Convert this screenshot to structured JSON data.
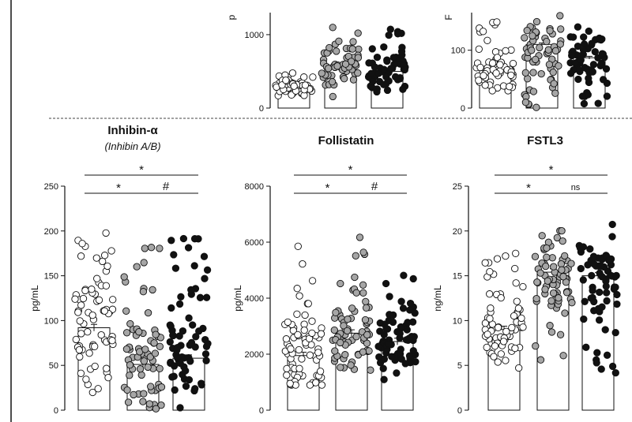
{
  "chart_data": [
    {
      "id": "top-mid",
      "type": "bar",
      "title": "",
      "ylabel": "p",
      "ylim": [
        0,
        1300
      ],
      "yticks": [
        0,
        1000
      ],
      "categories": [
        "",
        "",
        ""
      ],
      "series": [
        {
          "values": [
            280,
            570,
            500
          ],
          "fill": [
            "#ffffff",
            "#a6a6a6",
            "#111111"
          ],
          "jitter": [
            [
              140,
              480
            ],
            [
              150,
              1100
            ],
            [
              150,
              1100
            ]
          ]
        }
      ],
      "colors": {
        "group1": "#ffffff",
        "group2": "#a6a6a6",
        "group3": "#111111"
      }
    },
    {
      "id": "top-right",
      "type": "bar",
      "title": "",
      "ylabel": "F",
      "ylim": [
        0,
        165
      ],
      "yticks": [
        0,
        100
      ],
      "categories": [
        "",
        "",
        ""
      ],
      "series": [
        {
          "values": [
            65,
            110,
            87
          ],
          "fill": [
            "#ffffff",
            "#a6a6a6",
            "#111111"
          ],
          "jitter": [
            [
              30,
              155
            ],
            [
              0,
              165
            ],
            [
              0,
              165
            ]
          ]
        }
      ]
    },
    {
      "id": "inhibin",
      "type": "bar",
      "title": "Inhibin-α",
      "subtitle": "(Inhibin A/B)",
      "ylabel": "pg/mL",
      "ylim": [
        0,
        250
      ],
      "yticks": [
        0,
        50,
        100,
        150,
        200,
        250
      ],
      "categories": [
        "",
        "",
        ""
      ],
      "series": [
        {
          "values": [
            92,
            51,
            58
          ],
          "fill": [
            "#ffffff",
            "#a6a6a6",
            "#111111"
          ],
          "jitter": [
            [
              0,
              225
            ],
            [
              0,
              190
            ],
            [
              0,
              200
            ]
          ]
        }
      ],
      "significance": [
        {
          "from": 0,
          "to": 1,
          "label": "*",
          "level": 1
        },
        {
          "from": 1,
          "to": 2,
          "label": "#",
          "level": 1
        },
        {
          "from": 0,
          "to": 2,
          "label": "*",
          "level": 2
        }
      ]
    },
    {
      "id": "follistatin",
      "type": "bar",
      "title": "Follistatin",
      "ylabel": "pg/mL",
      "ylim": [
        0,
        8000
      ],
      "yticks": [
        0,
        2000,
        4000,
        6000,
        8000
      ],
      "categories": [
        "",
        "",
        ""
      ],
      "series": [
        {
          "values": [
            1950,
            2750,
            2450
          ],
          "fill": [
            "#ffffff",
            "#a6a6a6",
            "#111111"
          ],
          "jitter": [
            [
              900,
              6600
            ],
            [
              1100,
              6200
            ],
            [
              1000,
              5400
            ]
          ]
        }
      ],
      "significance": [
        {
          "from": 0,
          "to": 1,
          "label": "*",
          "level": 1
        },
        {
          "from": 1,
          "to": 2,
          "label": "#",
          "level": 1
        },
        {
          "from": 0,
          "to": 2,
          "label": "*",
          "level": 2
        }
      ]
    },
    {
      "id": "fstl3",
      "type": "bar",
      "title": "FSTL3",
      "ylabel": "ng/mL",
      "ylim": [
        0,
        25
      ],
      "yticks": [
        0,
        5,
        10,
        15,
        20,
        25
      ],
      "categories": [
        "",
        "",
        ""
      ],
      "series": [
        {
          "values": [
            9,
            15.4,
            15
          ],
          "fill": [
            "#ffffff",
            "#a6a6a6",
            "#111111"
          ],
          "jitter": [
            [
              4.5,
              17.5
            ],
            [
              5.5,
              21.5
            ],
            [
              3.2,
              21.7
            ]
          ]
        }
      ],
      "significance": [
        {
          "from": 0,
          "to": 1,
          "label": "*",
          "level": 1
        },
        {
          "from": 1,
          "to": 2,
          "label": "ns",
          "level": 1
        },
        {
          "from": 0,
          "to": 2,
          "label": "*",
          "level": 2
        }
      ]
    }
  ]
}
